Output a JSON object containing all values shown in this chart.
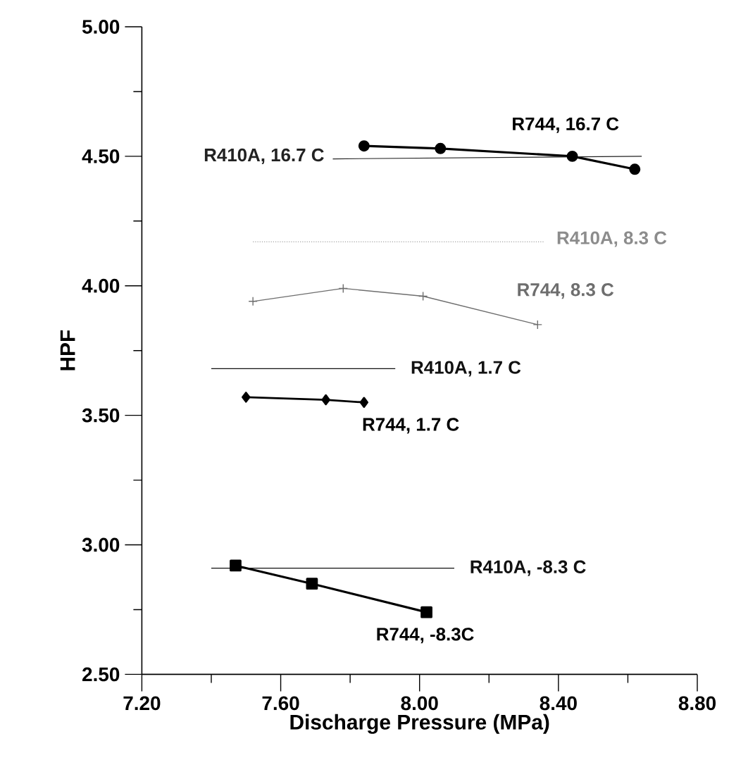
{
  "chart_data": {
    "type": "line",
    "xlabel": "Discharge Pressure (MPa)",
    "ylabel": "HPF",
    "xlim": [
      7.2,
      8.8
    ],
    "ylim": [
      2.5,
      5.0
    ],
    "xticks": [
      {
        "value": 7.2,
        "label": "7.20"
      },
      {
        "value": 7.6,
        "label": "7.60"
      },
      {
        "value": 8.0,
        "label": "8.00"
      },
      {
        "value": 8.4,
        "label": "8.40"
      },
      {
        "value": 8.8,
        "label": "8.80"
      }
    ],
    "yticks": [
      {
        "value": 2.5,
        "label": "2.50"
      },
      {
        "value": 3.0,
        "label": "3.00"
      },
      {
        "value": 3.5,
        "label": "3.50"
      },
      {
        "value": 4.0,
        "label": "4.00"
      },
      {
        "value": 4.5,
        "label": "4.50"
      },
      {
        "value": 5.0,
        "label": "5.00"
      }
    ],
    "series": [
      {
        "name": "R744, 16.7 C",
        "color": "#000000",
        "marker": "circle",
        "line_style": "solid",
        "x": [
          7.84,
          8.06,
          8.44,
          8.62
        ],
        "values": [
          4.54,
          4.53,
          4.5,
          4.45
        ]
      },
      {
        "name": "R410A, 16.7 C",
        "color": "#222222",
        "marker": "none",
        "line_style": "solid",
        "x": [
          7.75,
          8.64
        ],
        "values": [
          4.49,
          4.5
        ]
      },
      {
        "name": "R410A, 8.3 C",
        "color": "#8c8c8c",
        "marker": "none",
        "line_style": "dotted",
        "x": [
          7.52,
          8.36
        ],
        "values": [
          4.17,
          4.17
        ]
      },
      {
        "name": "R744, 8.3 C",
        "color": "#6e6e6e",
        "marker": "cross",
        "line_style": "solid",
        "x": [
          7.52,
          7.78,
          8.01,
          8.34
        ],
        "values": [
          3.94,
          3.99,
          3.96,
          3.85
        ]
      },
      {
        "name": "R410A, 1.7 C",
        "color": "#111111",
        "marker": "none",
        "line_style": "solid",
        "x": [
          7.4,
          7.93
        ],
        "values": [
          3.68,
          3.68
        ]
      },
      {
        "name": "R744, 1.7 C",
        "color": "#000000",
        "marker": "diamond",
        "line_style": "solid",
        "x": [
          7.5,
          7.73,
          7.84
        ],
        "values": [
          3.57,
          3.56,
          3.55
        ]
      },
      {
        "name": "R410A, -8.3 C",
        "color": "#111111",
        "marker": "none",
        "line_style": "solid",
        "x": [
          7.4,
          8.1
        ],
        "values": [
          2.91,
          2.91
        ]
      },
      {
        "name": "R744, -8.3C",
        "color": "#000000",
        "marker": "square",
        "line_style": "solid",
        "x": [
          7.47,
          7.69,
          8.02
        ],
        "values": [
          2.92,
          2.85,
          2.74
        ]
      }
    ]
  }
}
